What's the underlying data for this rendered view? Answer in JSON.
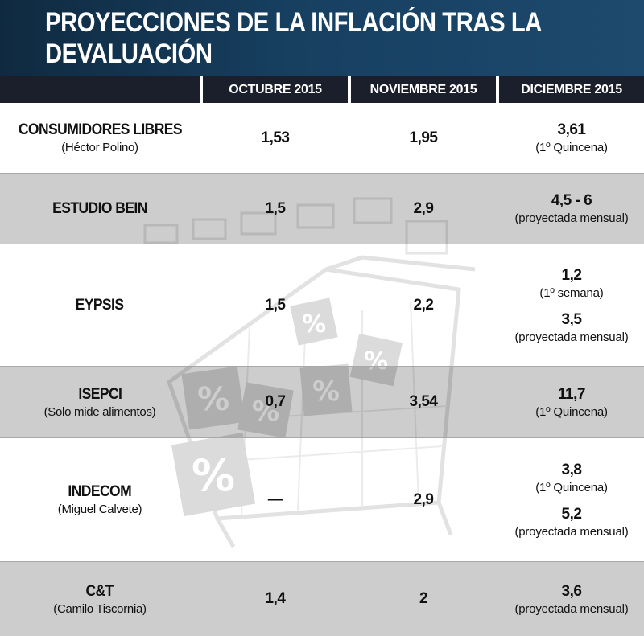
{
  "title": "PROYECCIONES DE LA INFLACIÓN TRAS LA DEVALUACIÓN",
  "columns": [
    "OCTUBRE 2015",
    "NOVIEMBRE 2015",
    "DICIEMBRE 2015"
  ],
  "rows": [
    {
      "name": "CONSUMIDORES LIBRES",
      "sub": "(Héctor Polino)",
      "oct": "1,53",
      "nov": "1,95",
      "dic": [
        {
          "value": "3,61",
          "note": "(1º Quincena)"
        }
      ]
    },
    {
      "name": "ESTUDIO BEIN",
      "sub": "",
      "oct": "1,5",
      "nov": "2,9",
      "dic": [
        {
          "value": "4,5 - 6",
          "note": "(proyectada mensual)"
        }
      ]
    },
    {
      "name": "EYPSIS",
      "sub": "",
      "oct": "1,5",
      "nov": "2,2",
      "dic": [
        {
          "value": "1,2",
          "note": "(1º semana)"
        },
        {
          "value": "3,5",
          "note": "(proyectada mensual)"
        }
      ]
    },
    {
      "name": "ISEPCI",
      "sub": "(Solo mide alimentos)",
      "oct": "0,7",
      "nov": "3,54",
      "dic": [
        {
          "value": "11,7",
          "note": "(1º Quincena)"
        }
      ]
    },
    {
      "name": "INDECOM",
      "sub": "(Miguel Calvete)",
      "oct": "—",
      "nov": "2,9",
      "dic": [
        {
          "value": "3,8",
          "note": "(1º Quincena)"
        },
        {
          "value": "5,2",
          "note": "(proyectada mensual)"
        }
      ]
    },
    {
      "name": "C&T",
      "sub": "(Camilo Tiscornia)",
      "oct": "1,4",
      "nov": "2",
      "dic": [
        {
          "value": "3,6",
          "note": "(proyectada mensual)"
        }
      ]
    }
  ],
  "chart_data": {
    "type": "table",
    "title": "PROYECCIONES DE LA INFLACIÓN TRAS LA DEVALUACIÓN",
    "columns": [
      "",
      "OCTUBRE 2015",
      "NOVIEMBRE 2015",
      "DICIEMBRE 2015"
    ],
    "rows": [
      [
        "CONSUMIDORES LIBRES (Héctor Polino)",
        "1,53",
        "1,95",
        "3,61 (1º Quincena)"
      ],
      [
        "ESTUDIO BEIN",
        "1,5",
        "2,9",
        "4,5 - 6 (proyectada mensual)"
      ],
      [
        "EYPSIS",
        "1,5",
        "2,2",
        "1,2 (1º semana); 3,5 (proyectada mensual)"
      ],
      [
        "ISEPCI (Solo mide alimentos)",
        "0,7",
        "3,54",
        "11,7 (1º Quincena)"
      ],
      [
        "INDECOM (Miguel Calvete)",
        "—",
        "2,9",
        "3,8 (1º Quincena); 5,2 (proyectada mensual)"
      ],
      [
        "C&T (Camilo Tiscornia)",
        "1,4",
        "2",
        "3,6 (proyectada mensual)"
      ]
    ]
  },
  "colors": {
    "banner": "#173f60",
    "header": "#1b1e2b",
    "shaded_row": "#b4b4b4"
  }
}
